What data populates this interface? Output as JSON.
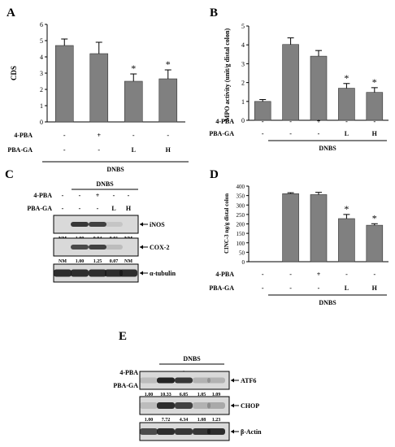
{
  "panels": {
    "A": {
      "letter": "A",
      "chart_data": {
        "type": "bar",
        "ylabel": "CDS",
        "ylim": [
          0,
          6
        ],
        "yticks": [
          "0",
          "1",
          "2",
          "3",
          "4",
          "5",
          "6"
        ],
        "values": [
          4.7,
          4.2,
          2.5,
          2.65
        ],
        "errors": [
          0.4,
          0.7,
          0.45,
          0.55
        ],
        "star": [
          "",
          "",
          "*",
          "*"
        ],
        "rows": [
          {
            "label": "4-PBA",
            "cells": [
              "-",
              "+",
              "-",
              "-"
            ]
          },
          {
            "label": "PBA-GA",
            "cells": [
              "-",
              "-",
              "L",
              "H"
            ]
          }
        ],
        "group_label": "DNBS"
      }
    },
    "B": {
      "letter": "B",
      "chart_data": {
        "type": "bar",
        "ylabel": "MPO activity (unit/g distal colon)",
        "ylim": [
          0,
          5
        ],
        "yticks": [
          "0",
          "1",
          "2",
          "3",
          "4",
          "5"
        ],
        "values": [
          1.0,
          4.02,
          3.4,
          1.7,
          1.48
        ],
        "errors": [
          0.1,
          0.35,
          0.3,
          0.25,
          0.25
        ],
        "star": [
          "",
          "",
          "",
          "*",
          "*"
        ],
        "rows": [
          {
            "label": "4-PBA",
            "cells": [
              "-",
              "-",
              "+",
              "-",
              "-"
            ]
          },
          {
            "label": "PBA-GA",
            "cells": [
              "-",
              "-",
              "-",
              "L",
              "H"
            ]
          }
        ],
        "group_label": "DNBS"
      }
    },
    "C": {
      "letter": "C",
      "group_label": "DNBS",
      "rows": [
        {
          "label": "4-PBA",
          "cells": [
            "-",
            "-",
            "+",
            "-",
            "-"
          ]
        },
        {
          "label": "PBA-GA",
          "cells": [
            "-",
            "-",
            "-",
            "L",
            "H"
          ]
        }
      ],
      "blots": [
        {
          "label": "iNOS",
          "values": [
            "NM",
            "1.00",
            "0.94",
            "0.01",
            "NM"
          ]
        },
        {
          "label": "COX-2",
          "values": [
            "NM",
            "1.00",
            "1.25",
            "0.07",
            "NM"
          ]
        },
        {
          "label": "α-tubulin",
          "values": []
        }
      ]
    },
    "D": {
      "letter": "D",
      "chart_data": {
        "type": "bar",
        "ylabel": "CINC-3 ng/g distal colon",
        "ylim": [
          0,
          400
        ],
        "yticks": [
          "0",
          "50",
          "100",
          "150",
          "200",
          "250",
          "300",
          "350",
          "400"
        ],
        "values": [
          0,
          360,
          355,
          228,
          193
        ],
        "errors": [
          0,
          5,
          12,
          22,
          8
        ],
        "star": [
          "",
          "",
          "",
          "*",
          "*"
        ],
        "rows": [
          {
            "label": "4-PBA",
            "cells": [
              "-",
              "-",
              "+",
              "-",
              "-"
            ]
          },
          {
            "label": "PBA-GA",
            "cells": [
              "-",
              "-",
              "-",
              "L",
              "H"
            ]
          }
        ],
        "group_label": "DNBS"
      }
    },
    "E": {
      "letter": "E",
      "group_label": "DNBS",
      "rows": [
        {
          "label": "4-PBA",
          "cells": [
            "-",
            "-",
            "+",
            "-",
            "-"
          ]
        },
        {
          "label": "PBA-GA",
          "cells": [
            "-",
            "-",
            "-",
            "L",
            "H"
          ]
        }
      ],
      "blots": [
        {
          "label": "ATF6",
          "values": [
            "1.00",
            "10.33",
            "6.05",
            "1.05",
            "1.09"
          ]
        },
        {
          "label": "CHOP",
          "values": [
            "1.00",
            "7.72",
            "4.34",
            "1.08",
            "1.23"
          ]
        },
        {
          "label": "β-Actin",
          "values": []
        }
      ]
    }
  },
  "colors": {
    "bar": "#808080",
    "text": "#000000",
    "blot_bg": "#d9d9d9",
    "band": "#1a1a1a"
  }
}
